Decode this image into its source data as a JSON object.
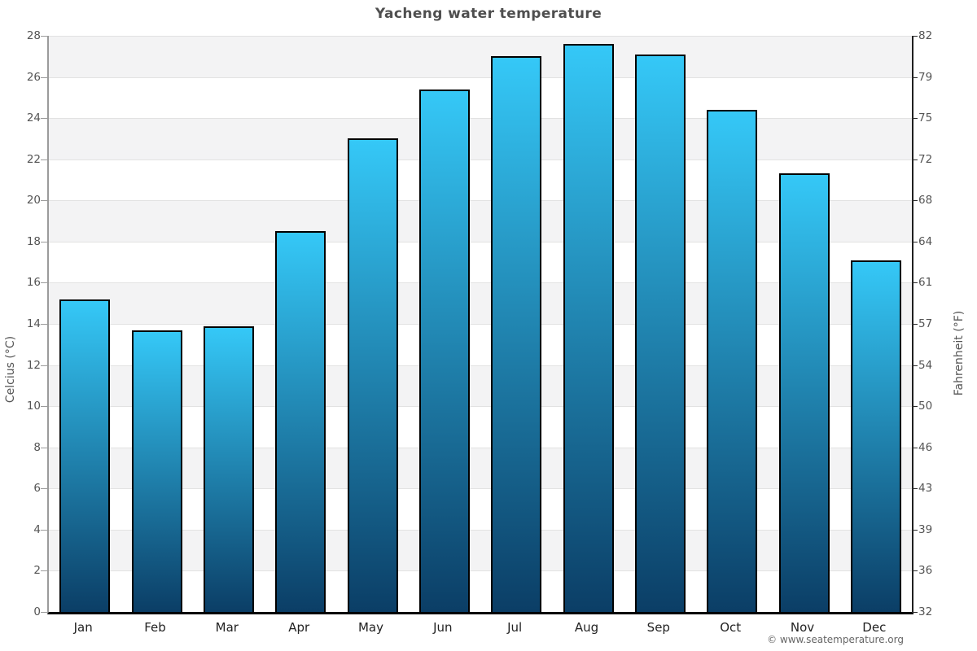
{
  "page": {
    "title": "Yacheng water temperature",
    "footer": "© www.seatemperature.org"
  },
  "chart_data": {
    "type": "bar",
    "title": "Yacheng water temperature",
    "categories": [
      "Jan",
      "Feb",
      "Mar",
      "Apr",
      "May",
      "Jun",
      "Jul",
      "Aug",
      "Sep",
      "Oct",
      "Nov",
      "Dec"
    ],
    "values": [
      15.2,
      13.7,
      13.9,
      18.5,
      23.0,
      25.4,
      27.0,
      27.6,
      27.1,
      24.4,
      21.3,
      17.1
    ],
    "unit": "°C",
    "xlabel": "",
    "ylabel_left": "Celcius (°C)",
    "ylabel_right": "Fahrenheit (°F)",
    "ylim": [
      0,
      28
    ],
    "ytick_step": 2,
    "yticks_celsius": [
      0,
      2,
      4,
      6,
      8,
      10,
      12,
      14,
      16,
      18,
      20,
      22,
      24,
      26,
      28
    ],
    "yticks_fahrenheit": [
      "32",
      "36",
      "39",
      "43",
      "46",
      "50",
      "54",
      "57",
      "61",
      "64",
      "68",
      "72",
      "75",
      "79",
      "82"
    ],
    "grid": true,
    "legend": false,
    "band_alternation": "gray band starts at top (28-26), alternating every 2°C",
    "colors": {
      "bar_gradient_top": "#35c8f7",
      "bar_gradient_bottom": "#0b3e66",
      "bar_border": "#000000",
      "band_fill": "#f3f3f4",
      "gridline": "#e2e2e2",
      "title_text": "#4f4f4f",
      "tick_text": "#555555",
      "month_text": "#222222"
    }
  }
}
